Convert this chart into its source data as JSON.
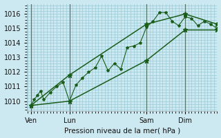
{
  "xlabel": "Pression niveau de la mer( hPa )",
  "bg_color": "#cce8f0",
  "grid_color": "#99ccd9",
  "line_color": "#1a5c1a",
  "ylim": [
    1009.3,
    1016.7
  ],
  "yticks": [
    1010,
    1011,
    1012,
    1013,
    1014,
    1015,
    1016
  ],
  "xtick_labels": [
    "Ven",
    "Lun",
    "Sam",
    "Dim"
  ],
  "xtick_positions": [
    0,
    3,
    9,
    12
  ],
  "xlim": [
    -0.3,
    14.5
  ],
  "vlines": [
    0,
    3,
    9,
    12
  ],
  "line1_x": [
    0,
    0.25,
    0.5,
    0.75,
    1.0,
    1.5,
    2.0,
    2.5,
    3.0,
    3.5,
    4.0,
    4.5,
    5.0,
    5.5,
    6.0,
    6.5,
    7.0,
    7.5,
    8.0,
    8.5,
    9.0,
    9.5,
    10.0,
    10.5,
    11.0,
    11.5,
    12.0,
    12.5,
    13.0,
    13.5,
    14.0,
    14.5
  ],
  "line1_y": [
    1009.7,
    1010.1,
    1010.4,
    1010.7,
    1010.1,
    1010.6,
    1011.0,
    1011.3,
    1010.0,
    1011.1,
    1011.6,
    1012.0,
    1012.3,
    1013.1,
    1012.1,
    1012.6,
    1012.2,
    1013.7,
    1013.8,
    1014.0,
    1015.1,
    1015.5,
    1016.1,
    1016.1,
    1015.5,
    1015.2,
    1015.8,
    1015.7,
    1015.2,
    1015.5,
    1015.3,
    1015.0
  ],
  "line2_x": [
    0,
    3,
    9,
    12,
    14.5
  ],
  "line2_y": [
    1009.7,
    1010.0,
    1012.8,
    1014.9,
    1014.9
  ],
  "line3_x": [
    0,
    3,
    9,
    12,
    14.5
  ],
  "line3_y": [
    1009.7,
    1011.8,
    1015.3,
    1016.0,
    1015.3
  ]
}
